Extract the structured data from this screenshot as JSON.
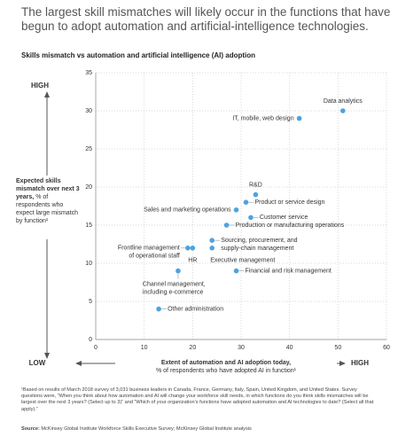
{
  "title": "The largest skill mismatches will likely occur in the functions that have begun to adopt automation and artificial-intelligence technologies.",
  "chart_data": {
    "type": "scatter",
    "title": "Skills mismatch vs automation and artificial intelligence (AI) adoption",
    "y_label": "Expected skills mismatch over next 3 years,",
    "y_label_note": "% of respondents who expect large mismatch by function¹",
    "x_label": "Extent of automation and AI adoption today,",
    "x_label_note": "% of respondents who have adopted AI in function¹",
    "y_high": "HIGH",
    "low": "LOW",
    "x_high": "HIGH",
    "xlim": [
      0,
      60
    ],
    "xticks": [
      0,
      10,
      20,
      30,
      40,
      50,
      60
    ],
    "ylim": [
      0,
      35
    ],
    "yticks": [
      0,
      5,
      10,
      15,
      20,
      25,
      30,
      35
    ],
    "grid": true,
    "color": "#4da3e0",
    "x": [
      51,
      42,
      33,
      31,
      29,
      32,
      27,
      24,
      24,
      19,
      20,
      29,
      17,
      13
    ],
    "values": [
      30,
      29,
      19,
      18,
      17,
      16,
      15,
      13,
      12,
      12,
      12,
      9,
      9,
      4
    ],
    "point_labels": [
      [
        "Data analytics"
      ],
      [
        "IT, mobile, web design"
      ],
      [
        "R&D"
      ],
      [
        "Product or service design"
      ],
      [
        "Sales and marketing operations"
      ],
      [
        "Customer service"
      ],
      [
        "Production or manufacturing operations"
      ],
      [
        "Sourcing, procurement, and",
        "supply-chain management"
      ],
      [
        "Executive management"
      ],
      [
        "Frontline management",
        "of operational staff"
      ],
      [
        "HR"
      ],
      [
        "Financial and risk management"
      ],
      [
        "Channel management,",
        "including e-commerce"
      ],
      [
        "Other administration"
      ]
    ]
  },
  "footnote": "¹Based on results of March 2018 survey of 3,031 business leaders in Canada, France, Germany, Italy, Spain, United Kingdom, and United States. Survey questions were, “When you think about how automation and AI will change your workforce skill needs, in which functions do you think skills mismatches will be largest over the next 3 years? (Select up to 3)” and “Which of your organization’s functions have adopted automation and AI technologies to date? (Select all that apply).”",
  "source_label": "Source:",
  "source": "McKinsey Global Institute Workforce Skills Executive Survey; McKinsey Global Institute analysis"
}
